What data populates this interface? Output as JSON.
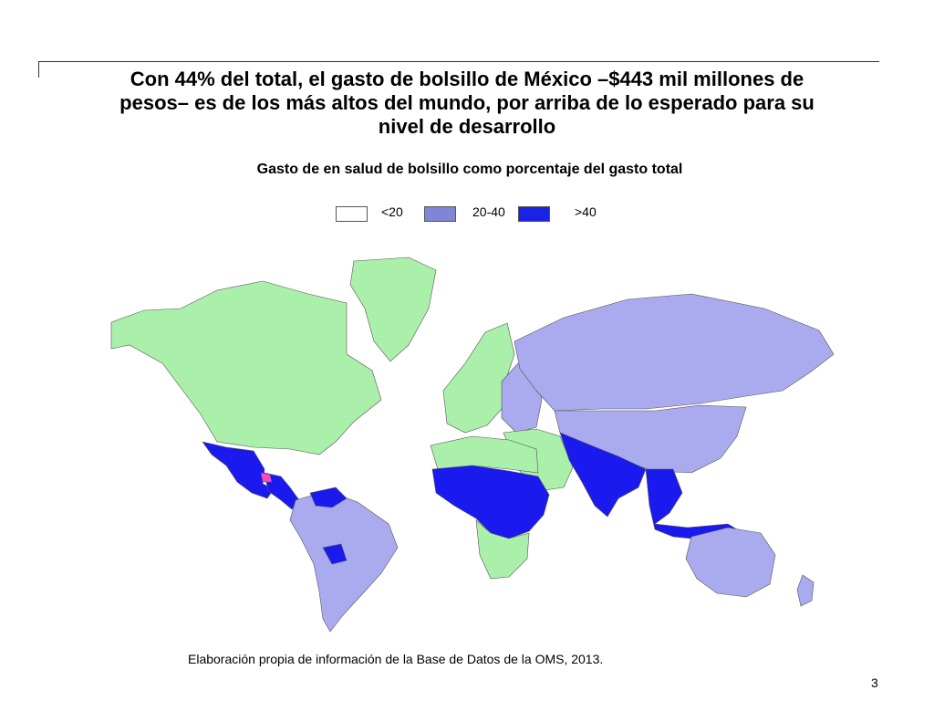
{
  "slide": {
    "title_lines": [
      "Con 44% del total, el gasto de bolsillo de México –$443 mil millones de",
      "pesos– es de los más altos del mundo, por arriba de lo esperado para su",
      "nivel de desarrollo"
    ],
    "subtitle": "Gasto de en salud de bolsillo como porcentaje del gasto total",
    "source": "Elaboración propia de información de la Base de Datos de la OMS, 2013.",
    "page_number": "3"
  },
  "legend": {
    "items": [
      {
        "label": "<20",
        "color": "#ffffff"
      },
      {
        "label": "20-40",
        "color": "#7f86d6"
      },
      {
        "label": ">40",
        "color": "#1a22e6"
      }
    ]
  },
  "map": {
    "type": "choropleth-world",
    "colors": {
      "low": "#aaf0aa",
      "mid": "#aaaaee",
      "high": "#1a1aee",
      "mexico_highlight": "#ff44cc",
      "no_data": "#a6b8cc",
      "border": "#555555"
    },
    "regions": [
      {
        "name": "north-america",
        "class": "low"
      },
      {
        "name": "mexico",
        "class": "high"
      },
      {
        "name": "central-america",
        "class": "high"
      },
      {
        "name": "south-america",
        "class": "mid"
      },
      {
        "name": "venezuela",
        "class": "high"
      },
      {
        "name": "bolivia",
        "class": "high"
      },
      {
        "name": "greenland",
        "class": "low"
      },
      {
        "name": "europe",
        "class": "low"
      },
      {
        "name": "eastern-europe",
        "class": "mid"
      },
      {
        "name": "russia",
        "class": "mid"
      },
      {
        "name": "china",
        "class": "mid"
      },
      {
        "name": "south-asia",
        "class": "high"
      },
      {
        "name": "southeast-asia",
        "class": "high"
      },
      {
        "name": "north-africa",
        "class": "low"
      },
      {
        "name": "sub-saharan-africa",
        "class": "high"
      },
      {
        "name": "southern-africa",
        "class": "low"
      },
      {
        "name": "middle-east",
        "class": "low"
      },
      {
        "name": "australia",
        "class": "mid"
      }
    ]
  }
}
